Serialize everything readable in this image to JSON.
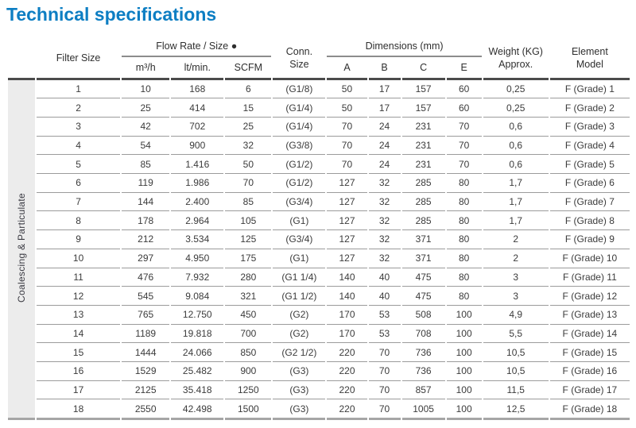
{
  "page": {
    "title": "Technical specifications"
  },
  "colors": {
    "title_blue": "#0d7ec3",
    "table_top_border": "#4b4b4b",
    "row_divider": "#9b9b9b",
    "table_bottom_border": "#a6a6a6",
    "sidebar_bg": "#ececec",
    "text": "#3b3b3b"
  },
  "table": {
    "group_label": "Coalescing & Particulate",
    "headers": {
      "filter_size": "Filter Size",
      "flow_rate": "Flow Rate / Size ●",
      "flow_sub": [
        "m³/h",
        "lt/min.",
        "SCFM"
      ],
      "conn_size": "Conn.\nSize",
      "dimensions": "Dimensions (mm)",
      "dim_sub": [
        "A",
        "B",
        "C",
        "E"
      ],
      "weight": "Weight (KG)\nApprox.",
      "element": "Element\nModel"
    },
    "rows": [
      [
        "1",
        "10",
        "168",
        "6",
        "(G1/8)",
        "50",
        "17",
        "157",
        "60",
        "0,25",
        "F (Grade) 1"
      ],
      [
        "2",
        "25",
        "414",
        "15",
        "(G1/4)",
        "50",
        "17",
        "157",
        "60",
        "0,25",
        "F (Grade) 2"
      ],
      [
        "3",
        "42",
        "702",
        "25",
        "(G1/4)",
        "70",
        "24",
        "231",
        "70",
        "0,6",
        "F (Grade) 3"
      ],
      [
        "4",
        "54",
        "900",
        "32",
        "(G3/8)",
        "70",
        "24",
        "231",
        "70",
        "0,6",
        "F (Grade) 4"
      ],
      [
        "5",
        "85",
        "1.416",
        "50",
        "(G1/2)",
        "70",
        "24",
        "231",
        "70",
        "0,6",
        "F (Grade) 5"
      ],
      [
        "6",
        "119",
        "1.986",
        "70",
        "(G1/2)",
        "127",
        "32",
        "285",
        "80",
        "1,7",
        "F (Grade) 6"
      ],
      [
        "7",
        "144",
        "2.400",
        "85",
        "(G3/4)",
        "127",
        "32",
        "285",
        "80",
        "1,7",
        "F (Grade) 7"
      ],
      [
        "8",
        "178",
        "2.964",
        "105",
        "(G1)",
        "127",
        "32",
        "285",
        "80",
        "1,7",
        "F (Grade) 8"
      ],
      [
        "9",
        "212",
        "3.534",
        "125",
        "(G3/4)",
        "127",
        "32",
        "371",
        "80",
        "2",
        "F (Grade) 9"
      ],
      [
        "10",
        "297",
        "4.950",
        "175",
        "(G1)",
        "127",
        "32",
        "371",
        "80",
        "2",
        "F (Grade) 10"
      ],
      [
        "11",
        "476",
        "7.932",
        "280",
        "(G1 1/4)",
        "140",
        "40",
        "475",
        "80",
        "3",
        "F (Grade) 11"
      ],
      [
        "12",
        "545",
        "9.084",
        "321",
        "(G1 1/2)",
        "140",
        "40",
        "475",
        "80",
        "3",
        "F (Grade) 12"
      ],
      [
        "13",
        "765",
        "12.750",
        "450",
        "(G2)",
        "170",
        "53",
        "508",
        "100",
        "4,9",
        "F (Grade) 13"
      ],
      [
        "14",
        "1189",
        "19.818",
        "700",
        "(G2)",
        "170",
        "53",
        "708",
        "100",
        "5,5",
        "F (Grade) 14"
      ],
      [
        "15",
        "1444",
        "24.066",
        "850",
        "(G2 1/2)",
        "220",
        "70",
        "736",
        "100",
        "10,5",
        "F (Grade) 15"
      ],
      [
        "16",
        "1529",
        "25.482",
        "900",
        "(G3)",
        "220",
        "70",
        "736",
        "100",
        "10,5",
        "F (Grade) 16"
      ],
      [
        "17",
        "2125",
        "35.418",
        "1250",
        "(G3)",
        "220",
        "70",
        "857",
        "100",
        "11,5",
        "F (Grade) 17"
      ],
      [
        "18",
        "2550",
        "42.498",
        "1500",
        "(G3)",
        "220",
        "70",
        "1005",
        "100",
        "12,5",
        "F (Grade) 18"
      ]
    ]
  }
}
